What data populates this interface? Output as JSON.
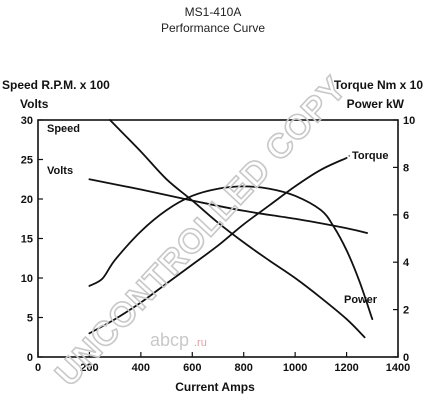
{
  "chart_data": {
    "type": "line",
    "title": "MS1-410A",
    "subtitle": "Performance Curve",
    "xlabel": "Current Amps",
    "xlim": [
      0,
      1400
    ],
    "x_ticks": [
      "0",
      "200",
      "400",
      "600",
      "800",
      "1000",
      "1200",
      "1400"
    ],
    "y_left_labels": [
      "Speed R.P.M. x 100",
      "Volts"
    ],
    "ylim_left": [
      0,
      30
    ],
    "y_left_ticks": [
      "0",
      "5",
      "10",
      "15",
      "20",
      "25",
      "30"
    ],
    "y_right_labels": [
      "Torque Nm x 10",
      "Power kW"
    ],
    "ylim_right": [
      0,
      10
    ],
    "y_right_ticks": [
      "0",
      "2",
      "4",
      "6",
      "8",
      "10"
    ],
    "grid": false,
    "series": [
      {
        "name": "Speed",
        "axis": "left",
        "points": [
          [
            280,
            30
          ],
          [
            400,
            26
          ],
          [
            500,
            22.5
          ],
          [
            600,
            19.8
          ],
          [
            700,
            17
          ],
          [
            800,
            14.5
          ],
          [
            900,
            12.2
          ],
          [
            1000,
            10
          ],
          [
            1100,
            7.5
          ],
          [
            1200,
            4.8
          ],
          [
            1270,
            2.5
          ]
        ]
      },
      {
        "name": "Volts",
        "axis": "left",
        "points": [
          [
            200,
            22.5
          ],
          [
            400,
            21.2
          ],
          [
            600,
            19.8
          ],
          [
            800,
            18.5
          ],
          [
            1000,
            17.5
          ],
          [
            1200,
            16.3
          ],
          [
            1280,
            15.7
          ]
        ]
      },
      {
        "name": "Torque",
        "axis": "right",
        "points": [
          [
            200,
            1
          ],
          [
            300,
            1.6
          ],
          [
            400,
            2.3
          ],
          [
            500,
            3.1
          ],
          [
            600,
            3.9
          ],
          [
            700,
            4.7
          ],
          [
            800,
            5.6
          ],
          [
            900,
            6.4
          ],
          [
            1000,
            7.2
          ],
          [
            1100,
            7.9
          ],
          [
            1200,
            8.4
          ]
        ]
      },
      {
        "name": "Power",
        "axis": "right",
        "points": [
          [
            200,
            3.0
          ],
          [
            250,
            3.3
          ],
          [
            300,
            4.1
          ],
          [
            400,
            5.3
          ],
          [
            500,
            6.2
          ],
          [
            600,
            6.8
          ],
          [
            700,
            7.1
          ],
          [
            800,
            7.2
          ],
          [
            900,
            7.1
          ],
          [
            1000,
            6.8
          ],
          [
            1100,
            6.2
          ],
          [
            1150,
            5.5
          ],
          [
            1200,
            4.5
          ],
          [
            1250,
            3.2
          ],
          [
            1300,
            1.6
          ]
        ]
      }
    ]
  },
  "watermark": "UNCONTROLLED COPY",
  "brand": {
    "name": "abcp",
    "suffix": ".ru"
  }
}
